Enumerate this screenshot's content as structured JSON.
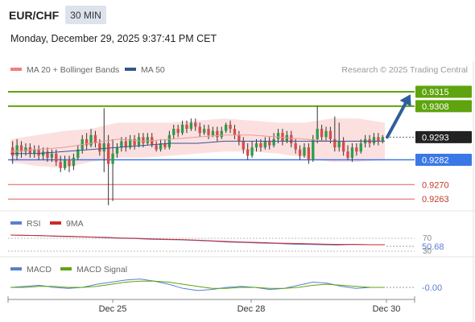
{
  "header": {
    "symbol": "EUR/CHF",
    "timeframe": "30 MIN",
    "datetime": "Monday, December 29, 2025 9:37:41 PM CET"
  },
  "legend": {
    "bollinger": "MA 20 + Bollinger Bands",
    "ma50": "MA 50",
    "credit": "Research © 2025 Trading Central",
    "rsi": "RSI",
    "rsi_ma": "9MA",
    "macd": "MACD",
    "macd_signal": "MACD Signal"
  },
  "colors": {
    "resistance": "#5ea40e",
    "support": "#3b78e7",
    "target": "#e05a5a",
    "bullish": "#2e9c4a",
    "bearish": "#d84c4c",
    "bollinger_fill": "#fbd8d8",
    "ma20": "#e79a9a",
    "ma50": "#35558c",
    "arrow": "#2f5e9c",
    "rsi": "#5b7fd0",
    "rsi_ma": "#cc2a2a",
    "macd": "#5b7fd0",
    "macd_signal": "#5ea40e"
  },
  "chart_data": [
    {
      "type": "candlestick",
      "x_axis": {
        "tick_labels": [
          "Dec 25",
          "Dec 28",
          "Dec 30"
        ]
      },
      "y_range": [
        0.9258,
        0.9322
      ],
      "current_price": 0.9293,
      "levels": [
        {
          "value": 0.9315,
          "kind": "resistance",
          "label": "0.9315"
        },
        {
          "value": 0.9308,
          "kind": "resistance",
          "label": "0.9308"
        },
        {
          "value": 0.9293,
          "kind": "current",
          "label": "0.9293"
        },
        {
          "value": 0.9282,
          "kind": "support",
          "label": "0.9282"
        },
        {
          "value": 0.927,
          "kind": "target",
          "label": "0.9270"
        },
        {
          "value": 0.9263,
          "kind": "target",
          "label": "0.9263"
        }
      ],
      "forecast_arrow": {
        "from": 0.9293,
        "to": 0.9311
      },
      "candles": [
        [
          0.9288,
          0.9284,
          0.9291,
          0.928
        ],
        [
          0.9284,
          0.9289,
          0.9292,
          0.9282
        ],
        [
          0.9289,
          0.9286,
          0.9291,
          0.9283
        ],
        [
          0.9286,
          0.9288,
          0.929,
          0.9284
        ],
        [
          0.9288,
          0.9285,
          0.929,
          0.9283
        ],
        [
          0.9285,
          0.9287,
          0.9289,
          0.9283
        ],
        [
          0.9287,
          0.9284,
          0.9289,
          0.9282
        ],
        [
          0.9284,
          0.9286,
          0.9288,
          0.9282
        ],
        [
          0.9286,
          0.9283,
          0.9288,
          0.9281
        ],
        [
          0.9283,
          0.9285,
          0.9287,
          0.9281
        ],
        [
          0.9285,
          0.9281,
          0.9287,
          0.9279
        ],
        [
          0.9281,
          0.9278,
          0.9284,
          0.9276
        ],
        [
          0.9278,
          0.9282,
          0.9284,
          0.9277
        ],
        [
          0.9282,
          0.9279,
          0.9284,
          0.9276
        ],
        [
          0.9279,
          0.9283,
          0.9285,
          0.9277
        ],
        [
          0.9283,
          0.9287,
          0.9289,
          0.9282
        ],
        [
          0.9287,
          0.9292,
          0.9294,
          0.9285
        ],
        [
          0.9292,
          0.9289,
          0.9295,
          0.9287
        ],
        [
          0.9289,
          0.9294,
          0.9297,
          0.9288
        ],
        [
          0.9294,
          0.929,
          0.9296,
          0.9288
        ],
        [
          0.929,
          0.9286,
          0.9292,
          0.9284
        ],
        [
          0.9286,
          0.929,
          0.9307,
          0.9276
        ],
        [
          0.929,
          0.928,
          0.9294,
          0.926
        ],
        [
          0.928,
          0.9285,
          0.9292,
          0.9262
        ],
        [
          0.9285,
          0.9288,
          0.929,
          0.9283
        ],
        [
          0.9288,
          0.9291,
          0.9293,
          0.9286
        ],
        [
          0.9291,
          0.9288,
          0.9293,
          0.9286
        ],
        [
          0.9288,
          0.9292,
          0.9294,
          0.9287
        ],
        [
          0.9292,
          0.9289,
          0.9294,
          0.9287
        ],
        [
          0.9289,
          0.9293,
          0.9295,
          0.9288
        ],
        [
          0.9293,
          0.929,
          0.9295,
          0.9288
        ],
        [
          0.929,
          0.9293,
          0.9295,
          0.9289
        ],
        [
          0.9293,
          0.9289,
          0.9295,
          0.9288
        ],
        [
          0.9289,
          0.9287,
          0.9291,
          0.9286
        ],
        [
          0.9287,
          0.929,
          0.9292,
          0.9286
        ],
        [
          0.929,
          0.9288,
          0.9292,
          0.9287
        ],
        [
          0.9288,
          0.9294,
          0.9296,
          0.9287
        ],
        [
          0.9294,
          0.9297,
          0.9299,
          0.9292
        ],
        [
          0.9297,
          0.9295,
          0.9299,
          0.9293
        ],
        [
          0.9295,
          0.9299,
          0.9301,
          0.9294
        ],
        [
          0.9299,
          0.9297,
          0.9301,
          0.9295
        ],
        [
          0.9297,
          0.93,
          0.9302,
          0.9296
        ],
        [
          0.93,
          0.9298,
          0.9302,
          0.9296
        ],
        [
          0.9298,
          0.9295,
          0.93,
          0.9293
        ],
        [
          0.9295,
          0.9297,
          0.9299,
          0.9294
        ],
        [
          0.9297,
          0.9294,
          0.9299,
          0.9292
        ],
        [
          0.9294,
          0.9296,
          0.9298,
          0.9293
        ],
        [
          0.9296,
          0.9293,
          0.9298,
          0.9291
        ],
        [
          0.9293,
          0.9296,
          0.9298,
          0.9292
        ],
        [
          0.9296,
          0.9299,
          0.93,
          0.9295
        ],
        [
          0.9299,
          0.9297,
          0.9301,
          0.9295
        ],
        [
          0.9297,
          0.9294,
          0.9299,
          0.9292
        ],
        [
          0.9294,
          0.9291,
          0.9296,
          0.9289
        ],
        [
          0.9291,
          0.9287,
          0.9293,
          0.9285
        ],
        [
          0.9287,
          0.9284,
          0.929,
          0.9282
        ],
        [
          0.9284,
          0.9288,
          0.9291,
          0.9283
        ],
        [
          0.9288,
          0.929,
          0.9292,
          0.9286
        ],
        [
          0.929,
          0.9288,
          0.9292,
          0.9286
        ],
        [
          0.9288,
          0.9291,
          0.9293,
          0.9287
        ],
        [
          0.9291,
          0.9289,
          0.9293,
          0.9287
        ],
        [
          0.9289,
          0.9292,
          0.9295,
          0.9288
        ],
        [
          0.9292,
          0.9295,
          0.9297,
          0.929
        ],
        [
          0.9295,
          0.9291,
          0.9297,
          0.9289
        ],
        [
          0.9291,
          0.9294,
          0.9296,
          0.929
        ],
        [
          0.9294,
          0.929,
          0.9296,
          0.9288
        ],
        [
          0.929,
          0.9287,
          0.9292,
          0.9285
        ],
        [
          0.9287,
          0.9284,
          0.9289,
          0.9282
        ],
        [
          0.9284,
          0.9288,
          0.929,
          0.9283
        ],
        [
          0.9288,
          0.9282,
          0.929,
          0.928
        ],
        [
          0.9282,
          0.9292,
          0.9294,
          0.9281
        ],
        [
          0.9292,
          0.9297,
          0.9308,
          0.929
        ],
        [
          0.9297,
          0.9293,
          0.9299,
          0.9291
        ],
        [
          0.9293,
          0.9296,
          0.9298,
          0.9291
        ],
        [
          0.9296,
          0.9292,
          0.9298,
          0.929
        ],
        [
          0.9292,
          0.9288,
          0.9303,
          0.9286
        ],
        [
          0.9288,
          0.9291,
          0.93,
          0.9286
        ],
        [
          0.9291,
          0.9286,
          0.9293,
          0.9284
        ],
        [
          0.9286,
          0.9283,
          0.9289,
          0.9282
        ],
        [
          0.9283,
          0.9288,
          0.929,
          0.9281
        ],
        [
          0.9288,
          0.9286,
          0.929,
          0.9284
        ],
        [
          0.9286,
          0.929,
          0.9292,
          0.9285
        ],
        [
          0.929,
          0.9292,
          0.9294,
          0.9288
        ],
        [
          0.9292,
          0.929,
          0.9294,
          0.9288
        ],
        [
          0.929,
          0.9293,
          0.9295,
          0.9289
        ],
        [
          0.9293,
          0.9291,
          0.9295,
          0.9289
        ],
        [
          0.9291,
          0.9293,
          0.9294,
          0.929
        ]
      ],
      "ma20": [
        0.9286,
        0.9287,
        0.9288,
        0.929,
        0.9292,
        0.9291,
        0.9292,
        0.9293,
        0.9294,
        0.9294,
        0.9293,
        0.9292,
        0.9291,
        0.9291,
        0.9291
      ],
      "bollinger_upper": [
        0.9292,
        0.9294,
        0.9296,
        0.9297,
        0.93,
        0.93,
        0.93,
        0.9301,
        0.9302,
        0.9301,
        0.93,
        0.93,
        0.9302,
        0.9302,
        0.93
      ],
      "bollinger_lower": [
        0.9281,
        0.9279,
        0.9278,
        0.9281,
        0.9283,
        0.9283,
        0.9284,
        0.9285,
        0.9286,
        0.9286,
        0.9285,
        0.9283,
        0.9281,
        0.9281,
        0.9282
      ],
      "ma50": [
        0.9285,
        0.9285,
        0.9286,
        0.9287,
        0.9288,
        0.9289,
        0.929,
        0.929,
        0.9291,
        0.9291,
        0.9291,
        0.9291,
        0.9291,
        0.9291,
        0.9291
      ]
    },
    {
      "type": "line",
      "title": "RSI",
      "y_ticks": [
        "70",
        "30"
      ],
      "current_value": "50.68",
      "series": [
        {
          "name": "RSI",
          "values": [
            80,
            79,
            78,
            76,
            75,
            74,
            72,
            70,
            69,
            67,
            66,
            65,
            63,
            61,
            58,
            57,
            55,
            54,
            52,
            51,
            50,
            49,
            51,
            50,
            50
          ]
        },
        {
          "name": "9MA",
          "values": [
            80,
            79,
            78,
            77,
            76,
            74,
            73,
            71,
            70,
            68,
            67,
            66,
            64,
            62,
            60,
            58,
            57,
            55,
            54,
            53,
            52,
            51,
            51,
            50,
            50
          ]
        }
      ]
    },
    {
      "type": "line",
      "title": "MACD",
      "current_value": "-0.00",
      "series": [
        {
          "name": "MACD",
          "values": [
            0,
            1,
            2,
            0,
            -1,
            0,
            3,
            5,
            7,
            8,
            6,
            3,
            -1,
            -3,
            -2,
            0,
            1,
            0,
            -2,
            -1,
            2,
            5,
            4,
            1,
            -1,
            0,
            0
          ]
        },
        {
          "name": "MACD Signal",
          "values": [
            0,
            0,
            1,
            1,
            0,
            0,
            1,
            3,
            5,
            6,
            6,
            5,
            3,
            1,
            -1,
            -1,
            0,
            0,
            -1,
            -1,
            0,
            2,
            3,
            2,
            1,
            0,
            0
          ]
        }
      ]
    }
  ]
}
